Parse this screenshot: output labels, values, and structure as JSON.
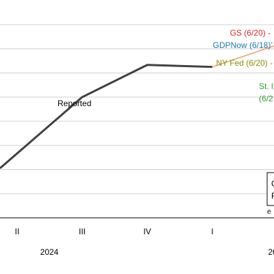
{
  "chart_data": {
    "type": "line",
    "x_categories": [
      "II",
      "III",
      "IV",
      "I",
      "II"
    ],
    "year_labels": [
      {
        "label": "2024",
        "at": "III"
      },
      {
        "label": "20",
        "at": "II (next)"
      }
    ],
    "series": [
      {
        "name": "Reported",
        "x": [
          "II",
          "III",
          "IV",
          "I"
        ],
        "values": [
          1.6,
          3.0,
          3.8,
          3.75
        ],
        "color": "#404040"
      },
      {
        "name": "",
        "x": [
          "I",
          "II (next)"
        ],
        "values": [
          3.75,
          4.3
        ],
        "color": "#e8a060"
      }
    ],
    "ylim": [
      0,
      4.8
    ],
    "grid": "horizontal",
    "annotations": [
      {
        "text": "GS (6/20)",
        "suffix": " -",
        "color": "#d62728"
      },
      {
        "text": "GDPNow (6/18)",
        "suffix": "’",
        "color": "#1f77b4"
      },
      {
        "text": "NY Fed (6/20)",
        "suffix": " -",
        "color": "#8c8c00"
      },
      {
        "text": "St. l",
        "color": "#2ca02c"
      },
      {
        "text": "(6/2",
        "color": "#2ca02c"
      },
      {
        "text": "Reported",
        "color": "#000000"
      }
    ],
    "legend_fragment": {
      "line1": "C",
      "line2": "F"
    },
    "footnote_fragment": "e"
  }
}
